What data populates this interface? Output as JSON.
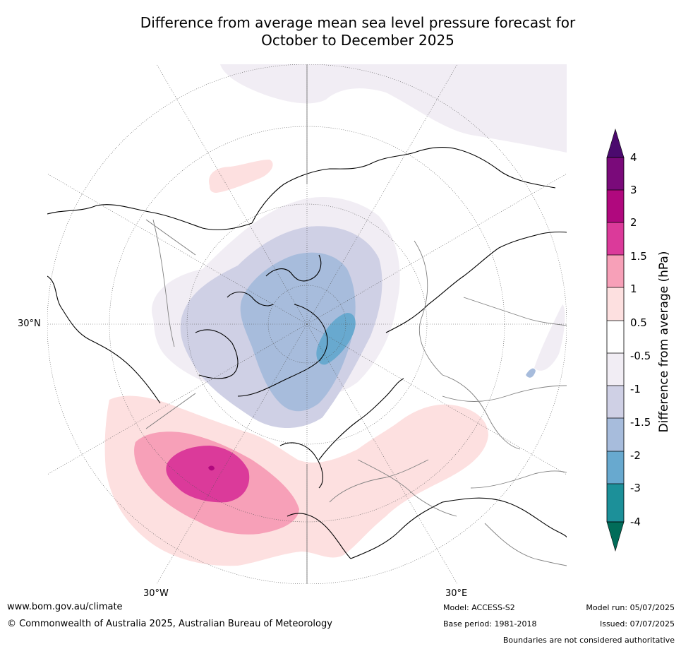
{
  "title_line1": "Difference from average mean sea level pressure forecast for",
  "title_line2": "October to December 2025",
  "map": {
    "lat_label": "30°N",
    "lon_labels": [
      "30°W",
      "30°E"
    ]
  },
  "colorbar": {
    "title": "Difference from average (hPa)",
    "ticks": [
      "4",
      "3",
      "2",
      "1.5",
      "1",
      "0.5",
      "-0.5",
      "-1",
      "-1.5",
      "-2",
      "-3",
      "-4"
    ],
    "colors": {
      "extend_high": "#4b0a6e",
      "3_to_4": "#7a0a7a",
      "2_to_3": "#b0087e",
      "1.5_to_2": "#db3a9a",
      "1_to_1.5": "#f7a0b8",
      "0.5_to_1": "#fde0e0",
      "-0.5_to_0.5": "#ffffff",
      "-1_to_-0.5": "#f1edf4",
      "-1.5_to_-1": "#cfd0e5",
      "-2_to_-1.5": "#a7bcdc",
      "-3_to_-2": "#68a9cf",
      "-4_to_-3": "#1c9099",
      "extend_low": "#016c59"
    }
  },
  "footer": {
    "website": "www.bom.gov.au/climate",
    "copyright": "© Commonwealth of Australia 2025, Australian Bureau of Meteorology",
    "model": "Model: ACCESS-S2",
    "base_period": "Base period: 1981-2018",
    "model_run": "Model run: 05/07/2025",
    "issued": "Issued: 07/07/2025",
    "disclaimer": "Boundaries are not considered authoritative"
  }
}
